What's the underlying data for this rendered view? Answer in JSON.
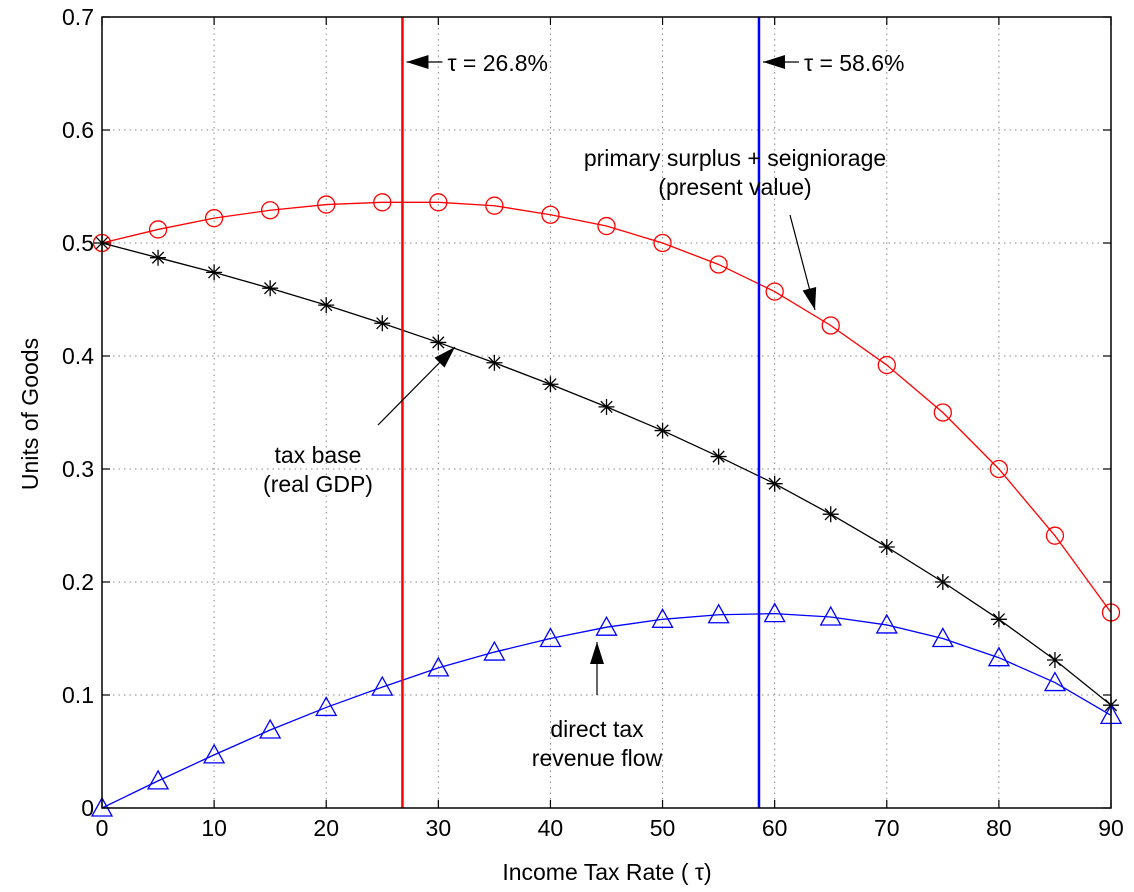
{
  "chart_data": {
    "type": "line",
    "xlabel": "Income Tax Rate ( τ)",
    "ylabel": "Units of Goods",
    "xlim": [
      0,
      90
    ],
    "ylim": [
      0,
      0.7
    ],
    "grid": true,
    "xticks": [
      "0",
      "10",
      "20",
      "30",
      "40",
      "50",
      "60",
      "70",
      "80",
      "90"
    ],
    "yticks": [
      "0",
      "0.1",
      "0.2",
      "0.3",
      "0.4",
      "0.5",
      "0.6",
      "0.7"
    ],
    "x": [
      0,
      5,
      10,
      15,
      20,
      25,
      30,
      35,
      40,
      45,
      50,
      55,
      60,
      65,
      70,
      75,
      80,
      85,
      90
    ],
    "series": [
      {
        "color": "#ff0000",
        "marker": "circle",
        "values": [
          0.5,
          0.512,
          0.522,
          0.529,
          0.534,
          0.536,
          0.536,
          0.533,
          0.525,
          0.515,
          0.5,
          0.481,
          0.457,
          0.427,
          0.392,
          0.35,
          0.3,
          0.241,
          0.173
        ]
      },
      {
        "color": "#000000",
        "marker": "star",
        "values": [
          0.5,
          0.487,
          0.474,
          0.46,
          0.445,
          0.429,
          0.412,
          0.394,
          0.375,
          0.355,
          0.334,
          0.311,
          0.287,
          0.26,
          0.231,
          0.2,
          0.167,
          0.131,
          0.091
        ]
      },
      {
        "color": "#0000ff",
        "marker": "triangle",
        "values": [
          0.0,
          0.024,
          0.047,
          0.069,
          0.089,
          0.107,
          0.124,
          0.138,
          0.15,
          0.16,
          0.167,
          0.171,
          0.172,
          0.169,
          0.162,
          0.15,
          0.133,
          0.111,
          0.082
        ]
      }
    ],
    "vlines": [
      {
        "x": 26.8,
        "color": "#ff0000",
        "label": "τ = 26.8%"
      },
      {
        "x": 58.6,
        "color": "#0000ff",
        "label": "τ = 58.6%"
      }
    ],
    "annotations": [
      {
        "lines": [
          "primary surplus + seigniorage",
          "(present value)"
        ]
      },
      {
        "lines": [
          "tax base",
          "(real GDP)"
        ]
      },
      {
        "lines": [
          "direct tax",
          "revenue flow"
        ]
      }
    ]
  }
}
